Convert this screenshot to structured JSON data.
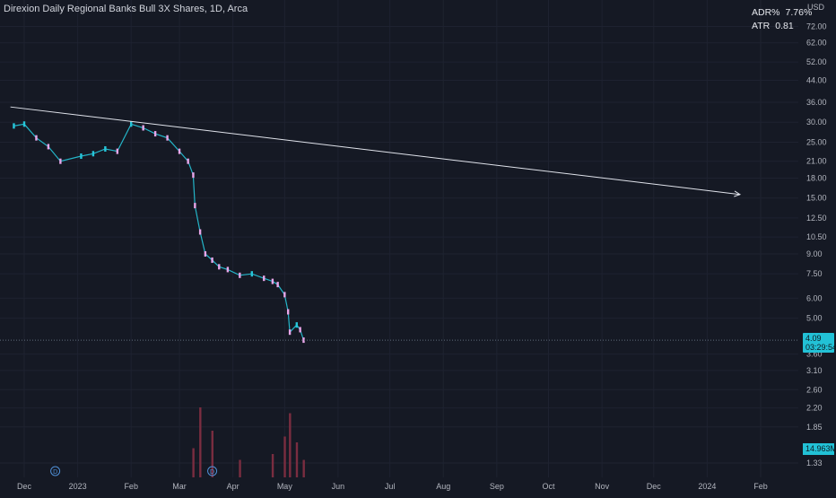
{
  "header": {
    "title": "Direxion Daily Regional Banks Bull 3X Shares, 1D, Arca"
  },
  "indicators": [
    {
      "label": "ADR%",
      "value": "7.76%"
    },
    {
      "label": "ATR",
      "value": "0.81"
    }
  ],
  "price_axis": {
    "currency": "USD",
    "ticks": [
      "72.00",
      "62.00",
      "52.00",
      "44.00",
      "36.00",
      "30.00",
      "25.00",
      "21.00",
      "18.00",
      "15.00",
      "12.50",
      "10.50",
      "9.00",
      "7.50",
      "6.00",
      "5.00",
      "3.60",
      "3.10",
      "2.60",
      "2.20",
      "1.85",
      "1.33"
    ]
  },
  "current_price": {
    "value": "4.09",
    "countdown": "03:29:54"
  },
  "current_volume": "14.963M",
  "colors": {
    "background": "#151924",
    "up_candle": "#26c6da",
    "down_candle": "#e8a6e9",
    "volume_bar": "#7a2d40",
    "trendline": "#e0e3eb",
    "price_tag": "#22c1d6"
  },
  "dividend_marker_label": "D",
  "chart_data": {
    "type": "candlestick",
    "title": "Direxion Daily Regional Banks Bull 3X Shares, 1D, Arca",
    "scale": "log",
    "ylim": [
      1.2,
      88
    ],
    "x_tick_labels": [
      "Dec",
      "2023",
      "Feb",
      "Mar",
      "Apr",
      "May",
      "Jun",
      "Jul",
      "Aug",
      "Sep",
      "Oct",
      "Nov",
      "Dec",
      "2024",
      "Feb"
    ],
    "close_series": {
      "x": [
        "2022-11-25",
        "2022-12-01",
        "2022-12-08",
        "2022-12-15",
        "2022-12-22",
        "2023-01-03",
        "2023-01-10",
        "2023-01-17",
        "2023-01-24",
        "2023-02-01",
        "2023-02-08",
        "2023-02-15",
        "2023-02-22",
        "2023-03-01",
        "2023-03-06",
        "2023-03-09",
        "2023-03-10",
        "2023-03-13",
        "2023-03-16",
        "2023-03-20",
        "2023-03-24",
        "2023-03-29",
        "2023-04-05",
        "2023-04-12",
        "2023-04-19",
        "2023-04-24",
        "2023-04-27",
        "2023-05-01",
        "2023-05-03",
        "2023-05-04",
        "2023-05-08",
        "2023-05-10",
        "2023-05-12"
      ],
      "y": [
        29.0,
        29.5,
        26.0,
        24.0,
        21.0,
        22.0,
        22.5,
        23.5,
        23.0,
        29.5,
        28.5,
        27.0,
        26.0,
        23.0,
        21.0,
        18.5,
        14.0,
        11.0,
        9.0,
        8.5,
        8.0,
        7.8,
        7.4,
        7.5,
        7.2,
        7.0,
        6.8,
        6.2,
        5.3,
        4.4,
        4.7,
        4.5,
        4.09
      ]
    },
    "volume_series": {
      "x": [
        "2023-03-09",
        "2023-03-13",
        "2023-03-20",
        "2023-04-05",
        "2023-04-24",
        "2023-05-01",
        "2023-05-04",
        "2023-05-08",
        "2023-05-12"
      ],
      "values_millions": [
        25,
        60,
        40,
        15,
        20,
        35,
        55,
        30,
        14.963
      ]
    },
    "trendline": {
      "start": {
        "x": "2022-11-23",
        "y": 34.5
      },
      "end": {
        "x": "2024-01-20",
        "y": 15.5
      }
    }
  }
}
